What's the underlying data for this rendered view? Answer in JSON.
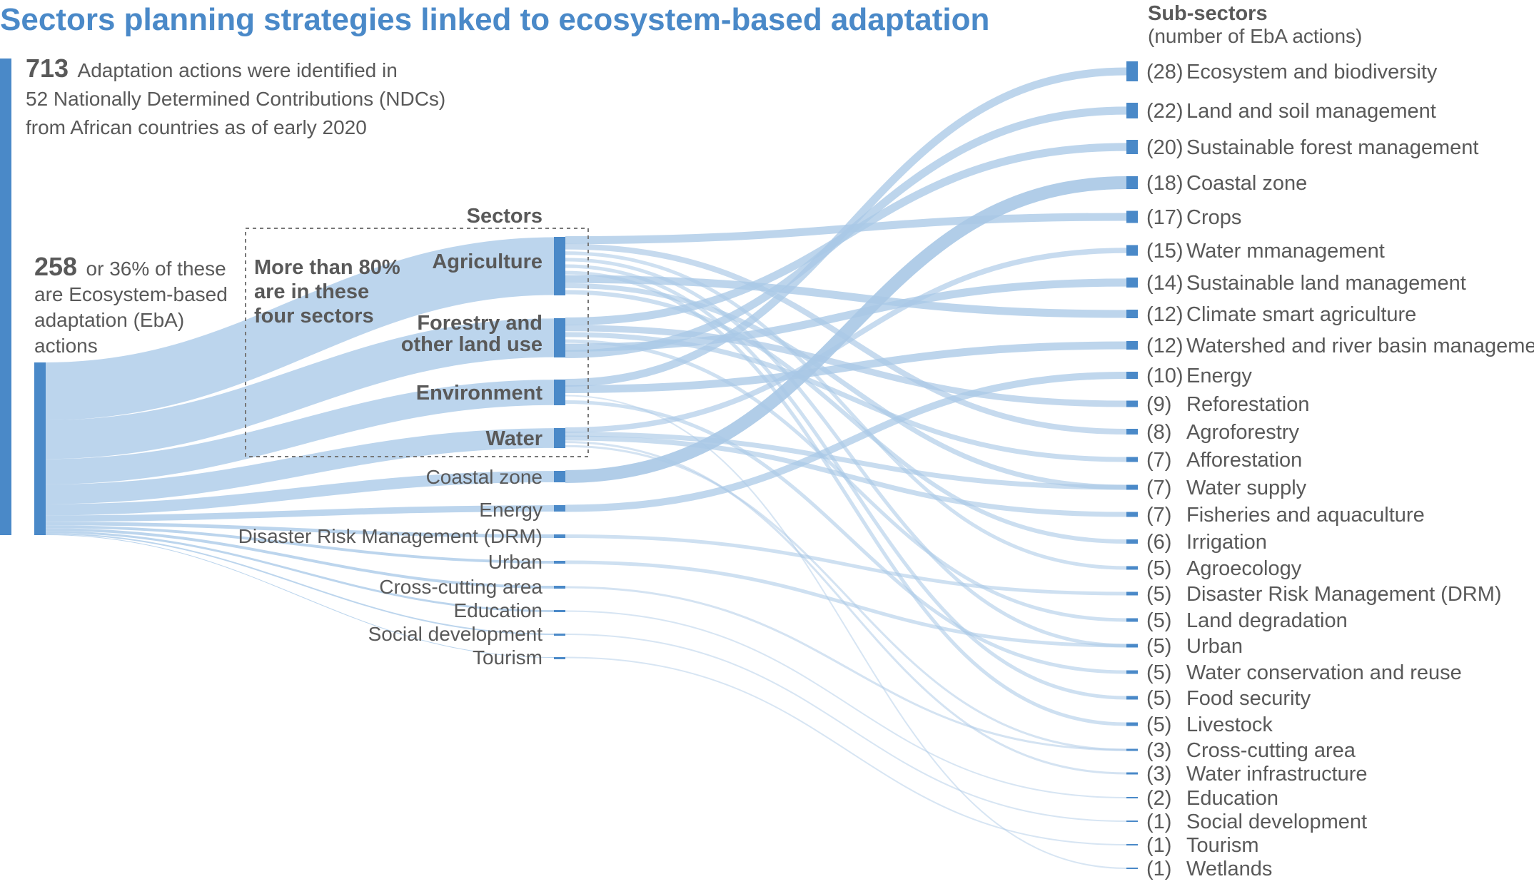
{
  "title": "Sectors planning strategies linked to ecosystem-based adaptation",
  "intro": {
    "total_number": "713",
    "total_text_1": "Adaptation actions were identified in",
    "total_text_2": "52 Nationally Determined Contributions (NDCs)",
    "total_text_3": "from African countries as of early 2020",
    "eba_number": "258",
    "eba_text_1": "or 36% of these",
    "eba_text_2": "are Ecosystem-based",
    "eba_text_3": "adaptation (EbA)",
    "eba_text_4": "actions"
  },
  "callout": {
    "line_1": "More than 80%",
    "line_2": "are in these",
    "line_3": "four sectors"
  },
  "sectors_heading": "Sectors",
  "subsectors_heading": {
    "line_1": "Sub-sectors",
    "line_2": "(number of EbA actions)"
  },
  "colors": {
    "node": "#4a89c8",
    "band": "#b8d3ec",
    "link": "#a9c8e6",
    "title": "#4a89c8",
    "text": "#595959"
  },
  "chart_data": {
    "type": "sankey",
    "total_actions": 713,
    "eba_actions": 258,
    "sectors": [
      {
        "name": "Agriculture",
        "bold": true
      },
      {
        "name": "Forestry and other land use",
        "line_1": "Forestry and",
        "line_2": "other land use",
        "bold": true
      },
      {
        "name": "Environment",
        "bold": true
      },
      {
        "name": "Water",
        "bold": true
      },
      {
        "name": "Coastal zone",
        "bold": false
      },
      {
        "name": "Energy",
        "bold": false
      },
      {
        "name": "Disaster Risk Management (DRM)",
        "bold": false
      },
      {
        "name": "Urban",
        "bold": false
      },
      {
        "name": "Cross-cutting area",
        "bold": false
      },
      {
        "name": "Education",
        "bold": false
      },
      {
        "name": "Social development",
        "bold": false
      },
      {
        "name": "Tourism",
        "bold": false
      }
    ],
    "subsectors": [
      {
        "count": "(28)",
        "name": "Ecosystem and biodiversity",
        "value": 28
      },
      {
        "count": "(22)",
        "name": "Land and soil management",
        "value": 22
      },
      {
        "count": "(20)",
        "name": "Sustainable forest management",
        "value": 20
      },
      {
        "count": "(18)",
        "name": "Coastal zone",
        "value": 18
      },
      {
        "count": "(17)",
        "name": "Crops",
        "value": 17
      },
      {
        "count": "(15)",
        "name": "Water mmanagement",
        "value": 15
      },
      {
        "count": "(14)",
        "name": "Sustainable land management",
        "value": 14
      },
      {
        "count": "(12)",
        "name": "Climate smart agriculture",
        "value": 12
      },
      {
        "count": "(12)",
        "name": "Watershed and river basin management",
        "value": 12
      },
      {
        "count": "(10)",
        "name": "Energy",
        "value": 10
      },
      {
        "count": "(9)",
        "name": "Reforestation",
        "value": 9
      },
      {
        "count": "(8)",
        "name": "Agroforestry",
        "value": 8
      },
      {
        "count": "(7)",
        "name": "Afforestation",
        "value": 7
      },
      {
        "count": "(7)",
        "name": "Water supply",
        "value": 7
      },
      {
        "count": "(7)",
        "name": "Fisheries and aquaculture",
        "value": 7
      },
      {
        "count": "(6)",
        "name": "Irrigation",
        "value": 6
      },
      {
        "count": "(5)",
        "name": "Agroecology",
        "value": 5
      },
      {
        "count": "(5)",
        "name": "Disaster Risk Management (DRM)",
        "value": 5
      },
      {
        "count": "(5)",
        "name": "Land degradation",
        "value": 5
      },
      {
        "count": "(5)",
        "name": "Urban",
        "value": 5
      },
      {
        "count": "(5)",
        "name": "Water conservation and reuse",
        "value": 5
      },
      {
        "count": "(5)",
        "name": "Food security",
        "value": 5
      },
      {
        "count": "(5)",
        "name": "Livestock",
        "value": 5
      },
      {
        "count": "(3)",
        "name": "Cross-cutting area",
        "value": 3
      },
      {
        "count": "(3)",
        "name": "Water infrastructure",
        "value": 3
      },
      {
        "count": "(2)",
        "name": "Education",
        "value": 2
      },
      {
        "count": "(1)",
        "name": "Social development",
        "value": 1
      },
      {
        "count": "(1)",
        "name": "Tourism",
        "value": 1
      },
      {
        "count": "(1)",
        "name": "Wetlands",
        "value": 1
      }
    ]
  }
}
